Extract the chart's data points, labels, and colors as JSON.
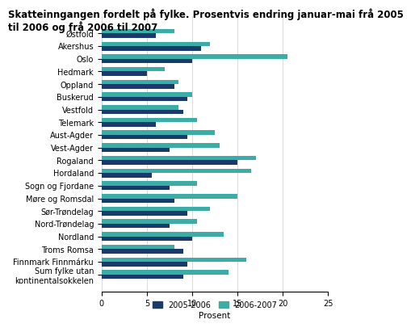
{
  "title": "Skatteinngangen fordelt på fylke. Prosentvis endring januar-mai frå 2005\ntil 2006 og frå 2006 til 2007",
  "categories": [
    "Østfold",
    "Akershus",
    "Oslo",
    "Hedmark",
    "Oppland",
    "Buskerud",
    "Vestfold",
    "Telemark",
    "Aust-Agder",
    "Vest-Agder",
    "Rogaland",
    "Hordaland",
    "Sogn og Fjordane",
    "Møre og Romsdal",
    "Sør-Trøndelag",
    "Nord-Trøndelag",
    "Nordland",
    "Troms Romsa",
    "Finnmark Finnmárku",
    "Sum fylke utan\nkontinentalsokkelen"
  ],
  "values_2005_2006": [
    6.0,
    11.0,
    10.0,
    5.0,
    8.0,
    9.5,
    9.0,
    6.0,
    9.5,
    7.5,
    15.0,
    5.5,
    7.5,
    8.0,
    9.5,
    7.5,
    10.0,
    9.0,
    9.5,
    9.0
  ],
  "values_2006_2007": [
    8.0,
    12.0,
    20.5,
    7.0,
    8.5,
    10.0,
    8.5,
    10.5,
    12.5,
    13.0,
    17.0,
    16.5,
    10.5,
    15.0,
    12.0,
    10.5,
    13.5,
    8.0,
    16.0,
    14.0
  ],
  "color_2005_2006": "#1a3a6b",
  "color_2006_2007": "#3aada8",
  "xlabel": "Prosent",
  "xlim": [
    0,
    25
  ],
  "xticks": [
    0,
    5,
    10,
    15,
    20,
    25
  ],
  "legend_2005_2006": "2005-2006",
  "legend_2006_2007": "2006-2007",
  "background_color": "#ffffff",
  "title_fontsize": 8.5,
  "label_fontsize": 7.5,
  "tick_fontsize": 7.0
}
